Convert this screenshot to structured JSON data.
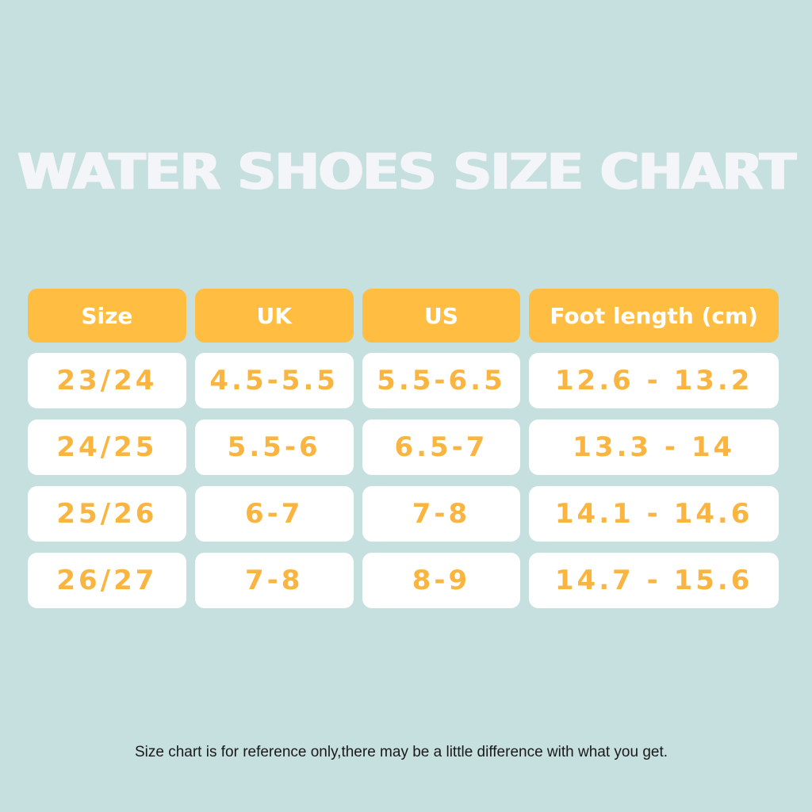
{
  "title": "WATER SHOES SIZE CHART",
  "colors": {
    "background": "#c6dfdf",
    "header_fill": "#ffbd42",
    "header_text": "#ffffff",
    "cell_fill": "#ffffff",
    "cell_text": "#f9b540",
    "title_text": "#f4f5f8"
  },
  "table": {
    "headers": [
      "Size",
      "UK",
      "US",
      "Foot length (cm)"
    ],
    "rows": [
      [
        "23/24",
        "4.5-5.5",
        "5.5-6.5",
        "12.6 - 13.2"
      ],
      [
        "24/25",
        "5.5-6",
        "6.5-7",
        "13.3 - 14"
      ],
      [
        "25/26",
        "6-7",
        "7-8",
        "14.1 - 14.6"
      ],
      [
        "26/27",
        "7-8",
        "8-9",
        "14.7 - 15.6"
      ]
    ]
  },
  "footnote": "Size chart is for reference only,there may be a little difference with what you get."
}
